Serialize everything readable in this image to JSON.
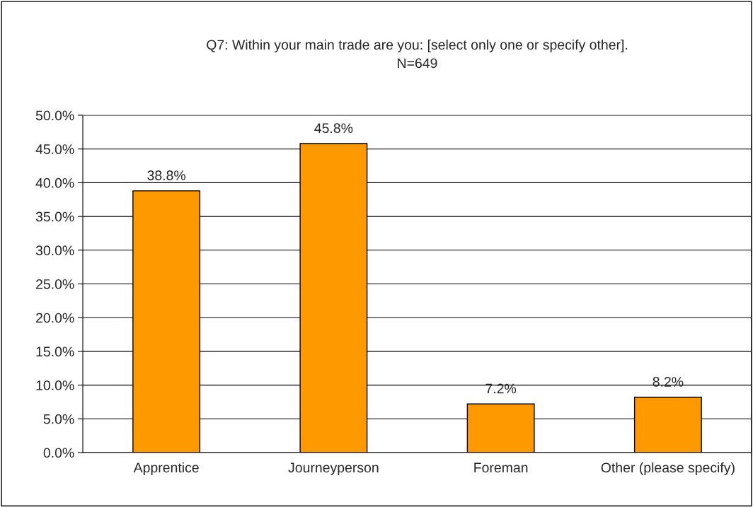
{
  "chart_data": {
    "type": "bar",
    "title": "Q7: Within your main trade are you: [select only one or specify other].",
    "subtitle": "N=649",
    "categories": [
      "Apprentice",
      "Journeyperson",
      "Foreman",
      "Other (please specify)"
    ],
    "values": [
      38.8,
      45.8,
      7.2,
      8.2
    ],
    "value_labels": [
      "38.8%",
      "45.8%",
      "7.2%",
      "8.2%"
    ],
    "color": "#ff9900",
    "ylim": [
      0,
      50
    ],
    "yticks": [
      {
        "value": 0,
        "label": "0.0%"
      },
      {
        "value": 5,
        "label": "5.0%"
      },
      {
        "value": 10,
        "label": "10.0%"
      },
      {
        "value": 15,
        "label": "15.0%"
      },
      {
        "value": 20,
        "label": "20.0%"
      },
      {
        "value": 25,
        "label": "25.0%"
      },
      {
        "value": 30,
        "label": "30.0%"
      },
      {
        "value": 35,
        "label": "35.0%"
      },
      {
        "value": 40,
        "label": "40.0%"
      },
      {
        "value": 45,
        "label": "45.0%"
      },
      {
        "value": 50,
        "label": "50.0%"
      }
    ],
    "grid": "y",
    "legend": false
  }
}
